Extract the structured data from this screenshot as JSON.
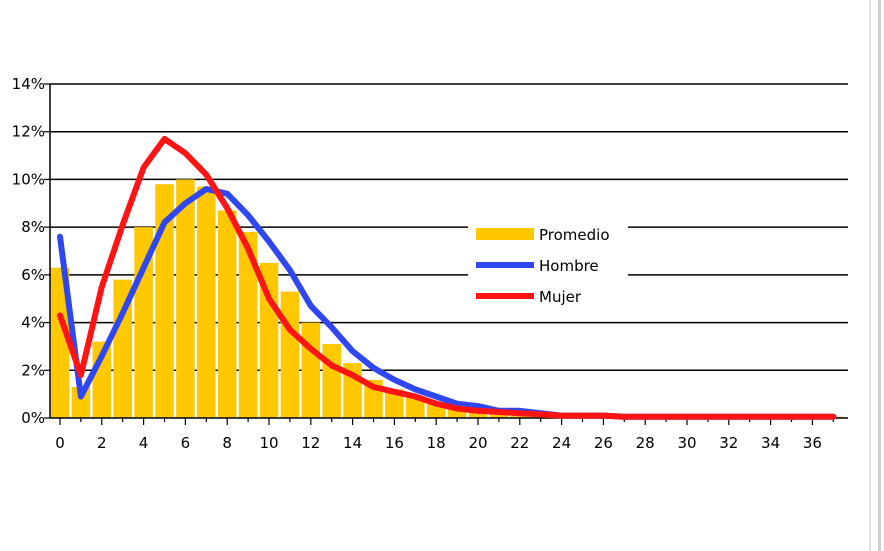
{
  "chart_data": {
    "type": "bar",
    "x": [
      0,
      1,
      2,
      3,
      4,
      5,
      6,
      7,
      8,
      9,
      10,
      11,
      12,
      13,
      14,
      15,
      16,
      17,
      18,
      19,
      20,
      21,
      22,
      23,
      24,
      25,
      26,
      27,
      28,
      29,
      30,
      31,
      32,
      33,
      34,
      35,
      36,
      37
    ],
    "x_tick_labels": [
      "0",
      "2",
      "4",
      "6",
      "8",
      "10",
      "12",
      "14",
      "16",
      "18",
      "20",
      "22",
      "24",
      "26",
      "28",
      "30",
      "32",
      "34",
      "36"
    ],
    "y_tick_labels": [
      "0%",
      "2%",
      "4%",
      "6%",
      "8%",
      "10%",
      "12%",
      "14%"
    ],
    "ylim": [
      0,
      14
    ],
    "xlim": [
      -0.5,
      37.5
    ],
    "grid": "horizontal",
    "legend_position": "center-right",
    "series": [
      {
        "name": "Promedio",
        "kind": "bar",
        "color": "#FFC800",
        "values": [
          6.3,
          1.3,
          3.2,
          5.8,
          8.0,
          9.8,
          10.0,
          9.7,
          8.7,
          7.8,
          6.5,
          5.3,
          4.0,
          3.1,
          2.3,
          1.6,
          1.2,
          0.9,
          0.6,
          0.4,
          0.3,
          0.2,
          0.2,
          0.1,
          0.1,
          0.1,
          0.1,
          0.05,
          0.05,
          0.05,
          0.05,
          0.05,
          0.05,
          0.05,
          0.05,
          0.05,
          0.05,
          0.05
        ]
      },
      {
        "name": "Hombre",
        "kind": "line",
        "color": "#2E47F0",
        "values": [
          7.6,
          0.9,
          2.6,
          4.4,
          6.3,
          8.2,
          9.0,
          9.6,
          9.4,
          8.5,
          7.4,
          6.2,
          4.7,
          3.8,
          2.8,
          2.1,
          1.6,
          1.2,
          0.9,
          0.6,
          0.5,
          0.3,
          0.3,
          0.2,
          0.1,
          0.1,
          0.1,
          0.05,
          0.05,
          0.05,
          0.05,
          0.05,
          0.05,
          0.05,
          0.05,
          0.05,
          0.05,
          0.05
        ]
      },
      {
        "name": "Mujer",
        "kind": "line",
        "color": "#FF1414",
        "values": [
          4.3,
          1.8,
          5.5,
          8.1,
          10.5,
          11.7,
          11.1,
          10.2,
          8.8,
          7.1,
          5.0,
          3.7,
          2.9,
          2.2,
          1.8,
          1.3,
          1.1,
          0.9,
          0.6,
          0.4,
          0.3,
          0.25,
          0.2,
          0.15,
          0.1,
          0.1,
          0.1,
          0.05,
          0.05,
          0.05,
          0.05,
          0.05,
          0.05,
          0.05,
          0.05,
          0.05,
          0.05,
          0.05
        ]
      }
    ]
  }
}
